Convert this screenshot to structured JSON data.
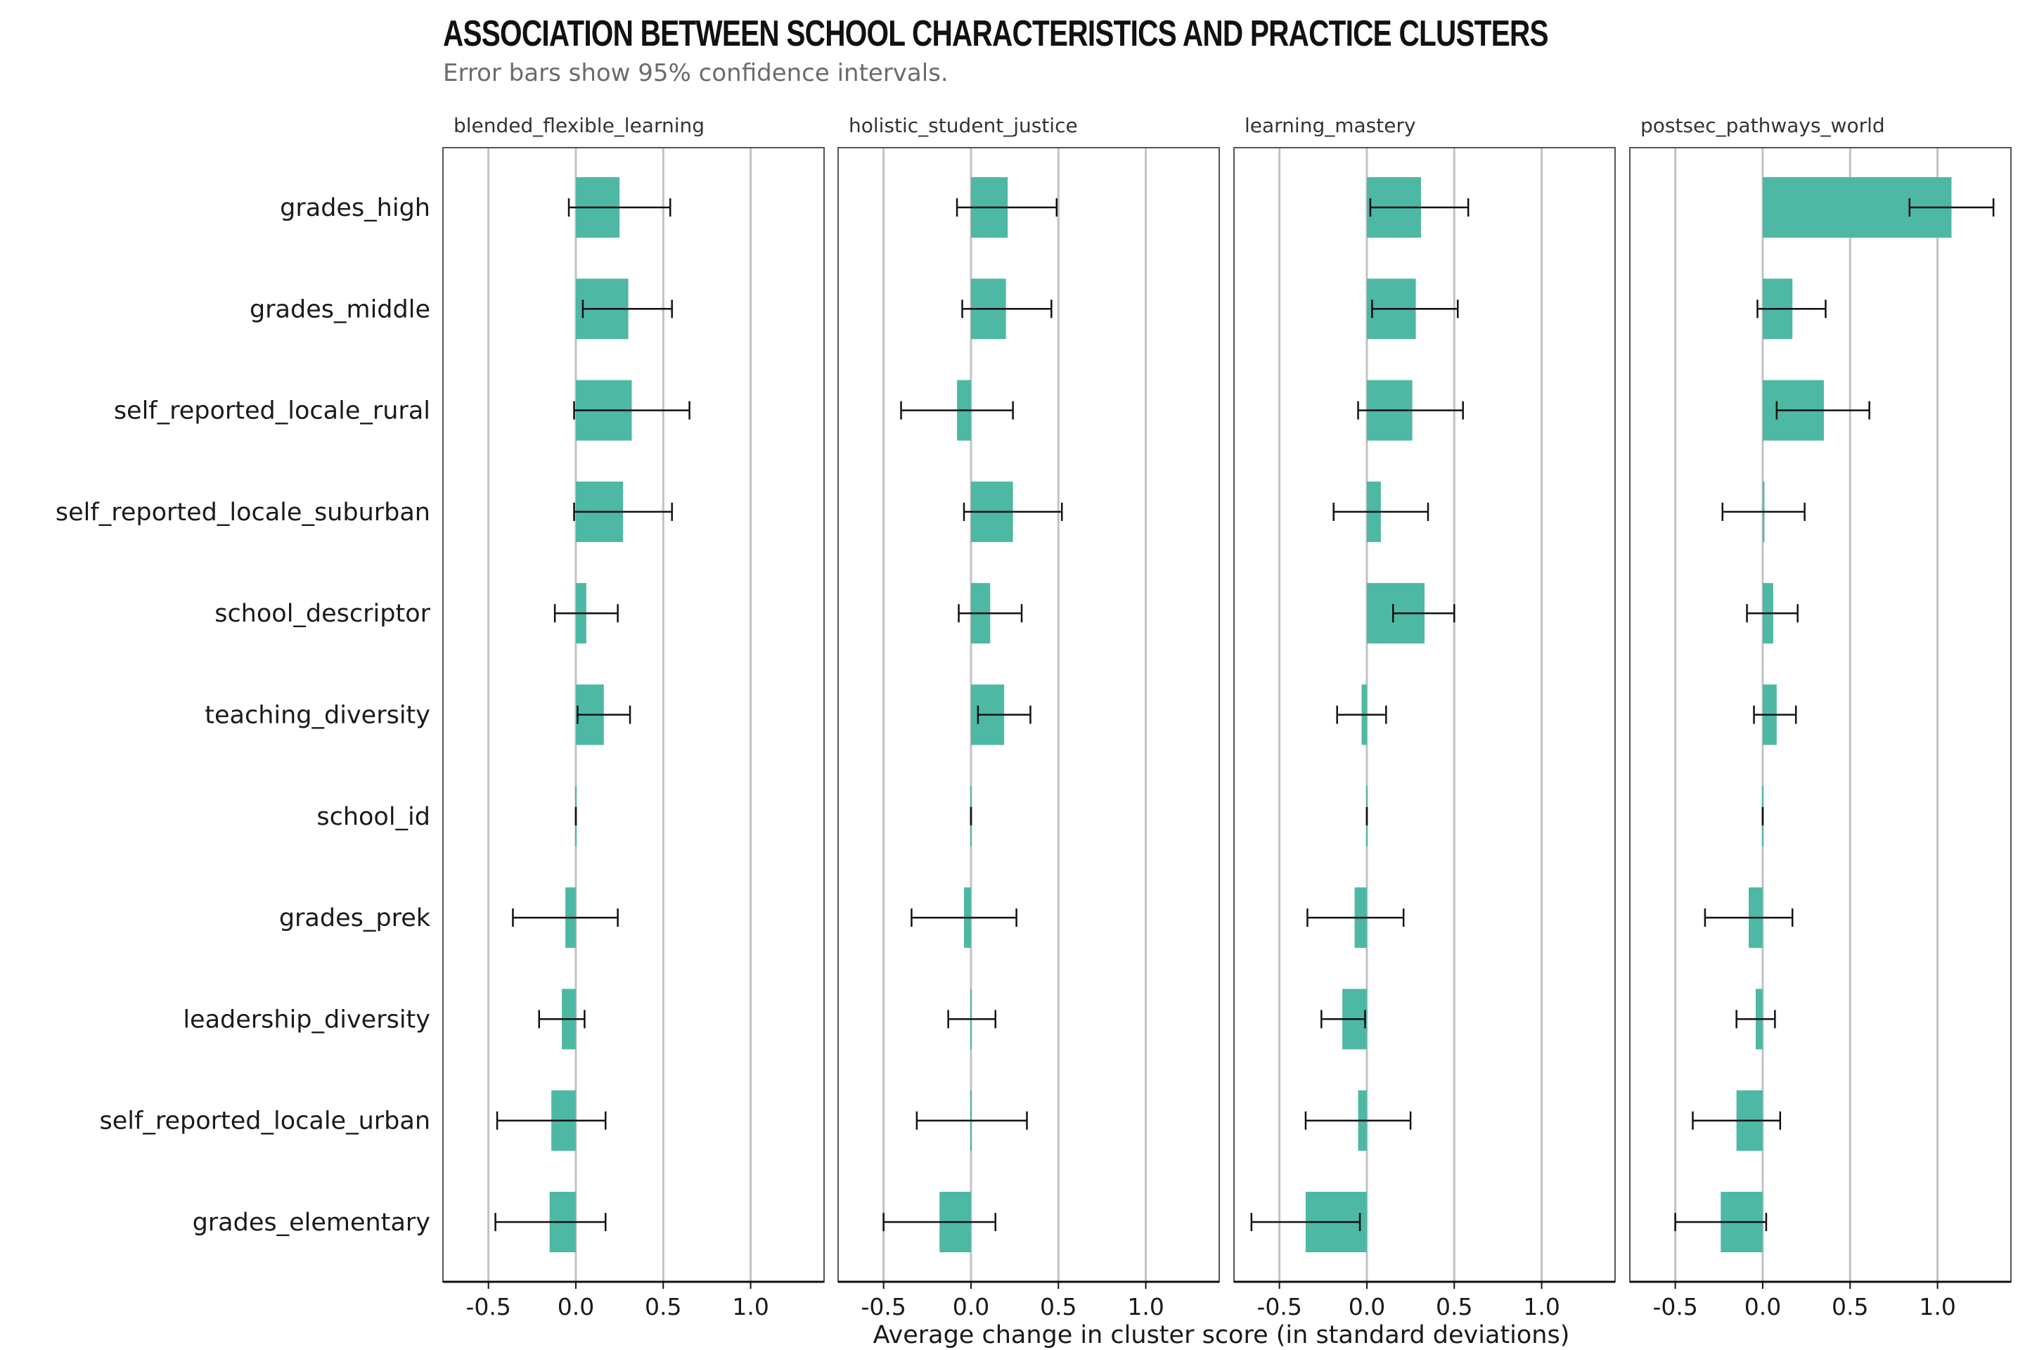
{
  "title": "ASSOCIATION BETWEEN SCHOOL CHARACTERISTICS AND PRACTICE CLUSTERS",
  "subtitle": "Error bars show 95% confidence intervals.",
  "chart_data": {
    "type": "bar",
    "orientation": "horizontal",
    "xlabel": "Average change in cluster score (in standard deviations)",
    "ylabel": "",
    "xlim": [
      -0.76,
      1.42
    ],
    "xticks": [
      -0.5,
      0.0,
      0.5,
      1.0
    ],
    "xtick_labels": [
      "-0.5",
      "0.0",
      "0.5",
      "1.0"
    ],
    "grid": "vertical major lines",
    "bar_color": "#4db8a4",
    "categories": [
      "grades_high",
      "grades_middle",
      "self_reported_locale_rural",
      "self_reported_locale_suburban",
      "school_descriptor",
      "teaching_diversity",
      "school_id",
      "grades_prek",
      "leadership_diversity",
      "self_reported_locale_urban",
      "grades_elementary"
    ],
    "panels": [
      {
        "name": "blended_flexible_learning",
        "values": [
          0.25,
          0.3,
          0.32,
          0.27,
          0.06,
          0.16,
          0.0,
          -0.06,
          -0.08,
          -0.14,
          -0.15
        ],
        "ci_low": [
          -0.04,
          0.04,
          -0.01,
          -0.01,
          -0.12,
          0.01,
          0.0,
          -0.36,
          -0.21,
          -0.45,
          -0.46
        ],
        "ci_high": [
          0.54,
          0.55,
          0.65,
          0.55,
          0.24,
          0.31,
          0.0,
          0.24,
          0.05,
          0.17,
          0.17
        ]
      },
      {
        "name": "holistic_student_justice",
        "values": [
          0.21,
          0.2,
          -0.08,
          0.24,
          0.11,
          0.19,
          0.0,
          -0.04,
          0.0,
          0.0,
          -0.18
        ],
        "ci_low": [
          -0.08,
          -0.05,
          -0.4,
          -0.04,
          -0.07,
          0.04,
          0.0,
          -0.34,
          -0.13,
          -0.31,
          -0.5
        ],
        "ci_high": [
          0.49,
          0.46,
          0.24,
          0.52,
          0.29,
          0.34,
          0.0,
          0.26,
          0.14,
          0.32,
          0.14
        ]
      },
      {
        "name": "learning_mastery",
        "values": [
          0.31,
          0.28,
          0.26,
          0.08,
          0.33,
          -0.03,
          0.0,
          -0.07,
          -0.14,
          -0.05,
          -0.35
        ],
        "ci_low": [
          0.02,
          0.03,
          -0.05,
          -0.19,
          0.15,
          -0.17,
          0.0,
          -0.34,
          -0.26,
          -0.35,
          -0.66
        ],
        "ci_high": [
          0.58,
          0.52,
          0.55,
          0.35,
          0.5,
          0.11,
          0.0,
          0.21,
          -0.01,
          0.25,
          -0.04
        ]
      },
      {
        "name": "postsec_pathways_world",
        "values": [
          1.08,
          0.17,
          0.35,
          0.01,
          0.06,
          0.08,
          0.0,
          -0.08,
          -0.04,
          -0.15,
          -0.24
        ],
        "ci_low": [
          0.84,
          -0.03,
          0.08,
          -0.23,
          -0.09,
          -0.05,
          0.0,
          -0.33,
          -0.15,
          -0.4,
          -0.5
        ],
        "ci_high": [
          1.32,
          0.36,
          0.61,
          0.24,
          0.2,
          0.19,
          0.0,
          0.17,
          0.07,
          0.1,
          0.02
        ]
      }
    ]
  }
}
